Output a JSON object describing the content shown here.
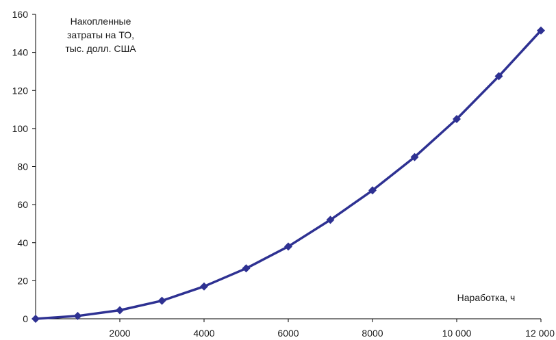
{
  "chart_data": {
    "type": "line",
    "title": "",
    "ylabel_lines": [
      "Накопленные",
      "затраты на ТО,",
      "тыс. долл. США"
    ],
    "xlabel": "Наработка, ч",
    "xlim": [
      0,
      12000
    ],
    "ylim": [
      0,
      160
    ],
    "x_ticks": [
      0,
      2000,
      4000,
      6000,
      8000,
      10000,
      12000
    ],
    "x_tick_labels": [
      "",
      "2000",
      "4000",
      "6000",
      "8000",
      "10 000",
      "12 000"
    ],
    "y_ticks": [
      0,
      20,
      40,
      60,
      80,
      100,
      120,
      140,
      160
    ],
    "y_tick_labels": [
      "0",
      "20",
      "40",
      "60",
      "80",
      "100",
      "120",
      "140",
      "160"
    ],
    "grid": false,
    "series": [
      {
        "color": "#2e3192",
        "marker": "diamond",
        "x": [
          0,
          1000,
          2000,
          3000,
          4000,
          5000,
          6000,
          7000,
          8000,
          9000,
          10000,
          11000,
          12000
        ],
        "y": [
          0,
          1.5,
          4.5,
          9.5,
          17,
          26.5,
          38,
          52,
          67.5,
          85,
          105,
          127.5,
          151.5
        ]
      }
    ]
  }
}
